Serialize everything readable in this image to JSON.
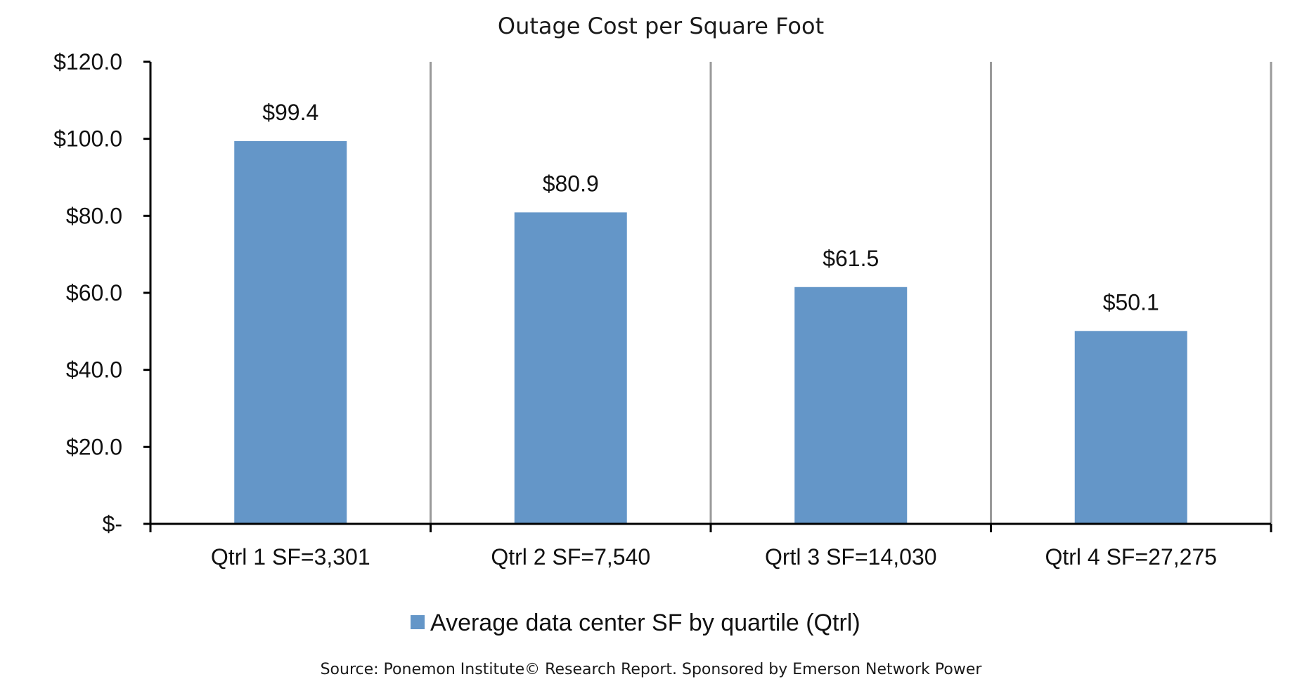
{
  "chart_data": {
    "type": "bar",
    "title": "Outage Cost per Square Foot",
    "categories": [
      "Qtrl 1 SF=3,301",
      "Qtrl 2 SF=7,540",
      "Qrtl 3 SF=14,030",
      "Qtrl 4 SF=27,275"
    ],
    "series": [
      {
        "name": "Average data center SF by quartile (Qtrl)",
        "values": [
          99.4,
          80.9,
          61.5,
          50.1
        ],
        "data_labels": [
          "$99.4",
          "$80.9",
          "$61.5",
          "$50.1"
        ],
        "color": "#6496C8"
      }
    ],
    "ylim": [
      0,
      120
    ],
    "yticks": [
      0,
      20,
      40,
      60,
      80,
      100,
      120
    ],
    "ytick_labels": [
      "$-",
      "$20.0",
      "$40.0",
      "$60.0",
      "$80.0",
      "$100.0",
      "$120.0"
    ],
    "xlabel": "",
    "ylabel": "",
    "grid": "vertical separators between categories",
    "legend_position": "bottom",
    "source": "Source: Ponemon Institute© Research Report. Sponsored by Emerson Network Power"
  }
}
